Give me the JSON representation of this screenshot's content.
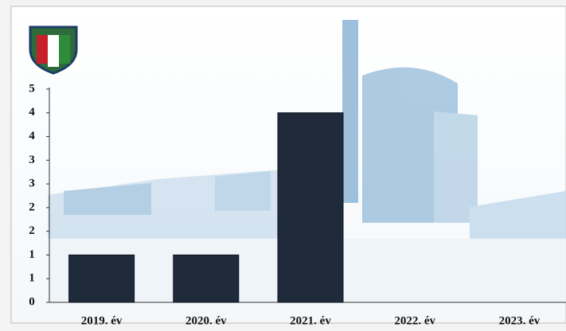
{
  "chart_data": {
    "type": "bar",
    "categories": [
      "2019. év",
      "2020. év",
      "2021. év",
      "2022. év",
      "2023. év"
    ],
    "values": [
      1,
      1,
      4,
      null,
      null
    ],
    "color": "#1f2b3b",
    "ylim": [
      0,
      4.5
    ],
    "yticks": [
      0,
      {
        "value": 0.5,
        "label": "1"
      },
      1,
      {
        "value": 1.5,
        "label": "2"
      },
      2,
      {
        "value": 2.5,
        "label": "3"
      },
      3,
      {
        "value": 3.5,
        "label": "4"
      },
      4,
      {
        "value": 4.5,
        "label": "5"
      }
    ],
    "grid": false
  }
}
